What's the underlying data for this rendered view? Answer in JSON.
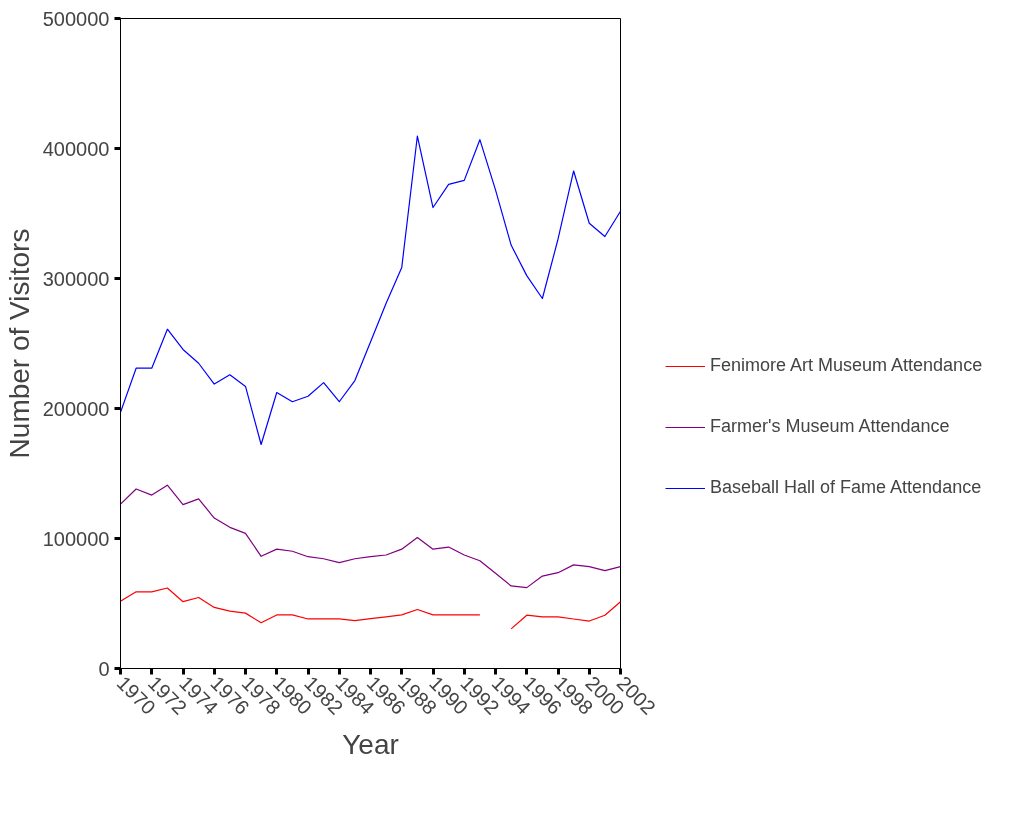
{
  "chart_data": {
    "type": "line",
    "xlabel": "Year",
    "ylabel": "Number of Visitors",
    "x": [
      1970,
      1971,
      1972,
      1973,
      1974,
      1975,
      1976,
      1977,
      1978,
      1979,
      1980,
      1981,
      1982,
      1983,
      1984,
      1985,
      1986,
      1987,
      1988,
      1989,
      1990,
      1991,
      1992,
      1993,
      1994,
      1995,
      1996,
      1997,
      1998,
      1999,
      2000,
      2001,
      2002
    ],
    "series": [
      {
        "name": "Fenimore Art Museum Attendance",
        "color": "#ff0000",
        "values": [
          51700,
          59000,
          59000,
          61900,
          51400,
          54600,
          47000,
          44100,
          42600,
          35200,
          41200,
          41200,
          38100,
          38100,
          38100,
          36800,
          38300,
          39700,
          41200,
          45400,
          41200,
          41200,
          41200,
          41200,
          null,
          30500,
          41000,
          39700,
          39700,
          38100,
          36500,
          41000,
          51400
        ]
      },
      {
        "name": "Farmer's Museum Attendance",
        "color": "#800080",
        "values": [
          126400,
          138100,
          133400,
          141000,
          126100,
          130500,
          115700,
          108600,
          103900,
          86300,
          91800,
          90200,
          86000,
          84400,
          81500,
          84400,
          86000,
          87300,
          91800,
          100700,
          91800,
          93400,
          87300,
          82900,
          73200,
          63500,
          62200,
          71100,
          73700,
          79700,
          78400,
          75300,
          78400
        ]
      },
      {
        "name": "Baseball Hall of Fame Attendance",
        "color": "#0000ff",
        "values": [
          197000,
          231000,
          231000,
          261000,
          245400,
          234800,
          218800,
          225900,
          217000,
          172300,
          212300,
          205200,
          209400,
          219900,
          205200,
          221500,
          251100,
          281000,
          308500,
          409600,
          354600,
          372400,
          375500,
          406800,
          368200,
          325700,
          302200,
          284600,
          330200,
          382700,
          342500,
          332300,
          351700
        ]
      }
    ],
    "xlim": [
      1970,
      2002
    ],
    "xticks": [
      1970,
      1972,
      1974,
      1976,
      1978,
      1980,
      1982,
      1984,
      1986,
      1988,
      1990,
      1992,
      1994,
      1996,
      1998,
      2000,
      2002
    ],
    "ylim": [
      0,
      500000
    ],
    "yticks": [
      0,
      100000,
      200000,
      300000,
      400000,
      500000
    ],
    "grid": false,
    "legend": "right",
    "marker": "none",
    "line_style": "solid"
  }
}
